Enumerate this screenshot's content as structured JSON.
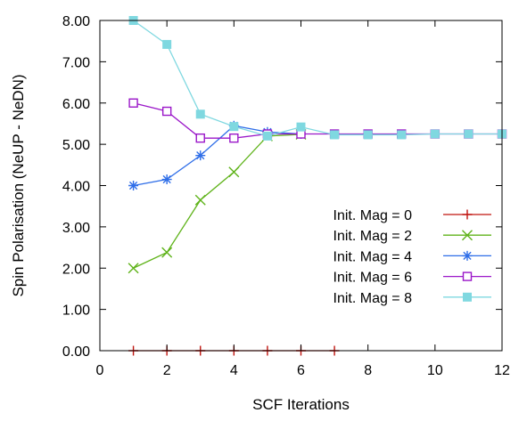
{
  "chart_data": {
    "type": "line",
    "title": "",
    "xlabel": "SCF Iterations",
    "ylabel": "Spin Polarisation (NeUP - NeDN)",
    "xlim": [
      0,
      12
    ],
    "ylim": [
      0,
      8
    ],
    "xticks": [
      "0",
      "2",
      "4",
      "6",
      "8",
      "10",
      "12"
    ],
    "yticks": [
      "0.00",
      "1.00",
      "2.00",
      "3.00",
      "4.00",
      "5.00",
      "6.00",
      "7.00",
      "8.00"
    ],
    "grid": false,
    "legend_position": "right",
    "series": [
      {
        "name": "Init. Mag = 0",
        "color": "#c0140f",
        "marker": "plus",
        "x": [
          1,
          2,
          3,
          4,
          5,
          6,
          7
        ],
        "y": [
          0.0,
          0.0,
          0.0,
          0.0,
          0.0,
          0.0,
          0.0
        ]
      },
      {
        "name": "Init. Mag = 2",
        "color": "#5fb31a",
        "marker": "cross",
        "x": [
          1,
          2,
          3,
          4,
          5,
          6
        ],
        "y": [
          2.0,
          2.38,
          3.65,
          4.33,
          5.2,
          5.24
        ]
      },
      {
        "name": "Init. Mag = 4",
        "color": "#2f6ee8",
        "marker": "star",
        "x": [
          1,
          2,
          3,
          4,
          5,
          6
        ],
        "y": [
          4.0,
          4.15,
          4.73,
          5.45,
          5.3,
          5.25
        ]
      },
      {
        "name": "Init. Mag = 6",
        "color": "#9b18c9",
        "marker": "open-square",
        "x": [
          1,
          2,
          3,
          4,
          5,
          6,
          7,
          8,
          9,
          10,
          11,
          12
        ],
        "y": [
          6.0,
          5.8,
          5.15,
          5.15,
          5.25,
          5.25,
          5.25,
          5.25,
          5.25,
          5.25,
          5.25,
          5.25
        ]
      },
      {
        "name": "Init. Mag = 8",
        "color": "#7fd8e0",
        "marker": "filled-square",
        "x": [
          1,
          2,
          3,
          4,
          5,
          6,
          7,
          8,
          9,
          10,
          11,
          12
        ],
        "y": [
          8.0,
          7.42,
          5.73,
          5.43,
          5.2,
          5.42,
          5.23,
          5.23,
          5.23,
          5.25,
          5.25,
          5.25
        ]
      }
    ]
  }
}
